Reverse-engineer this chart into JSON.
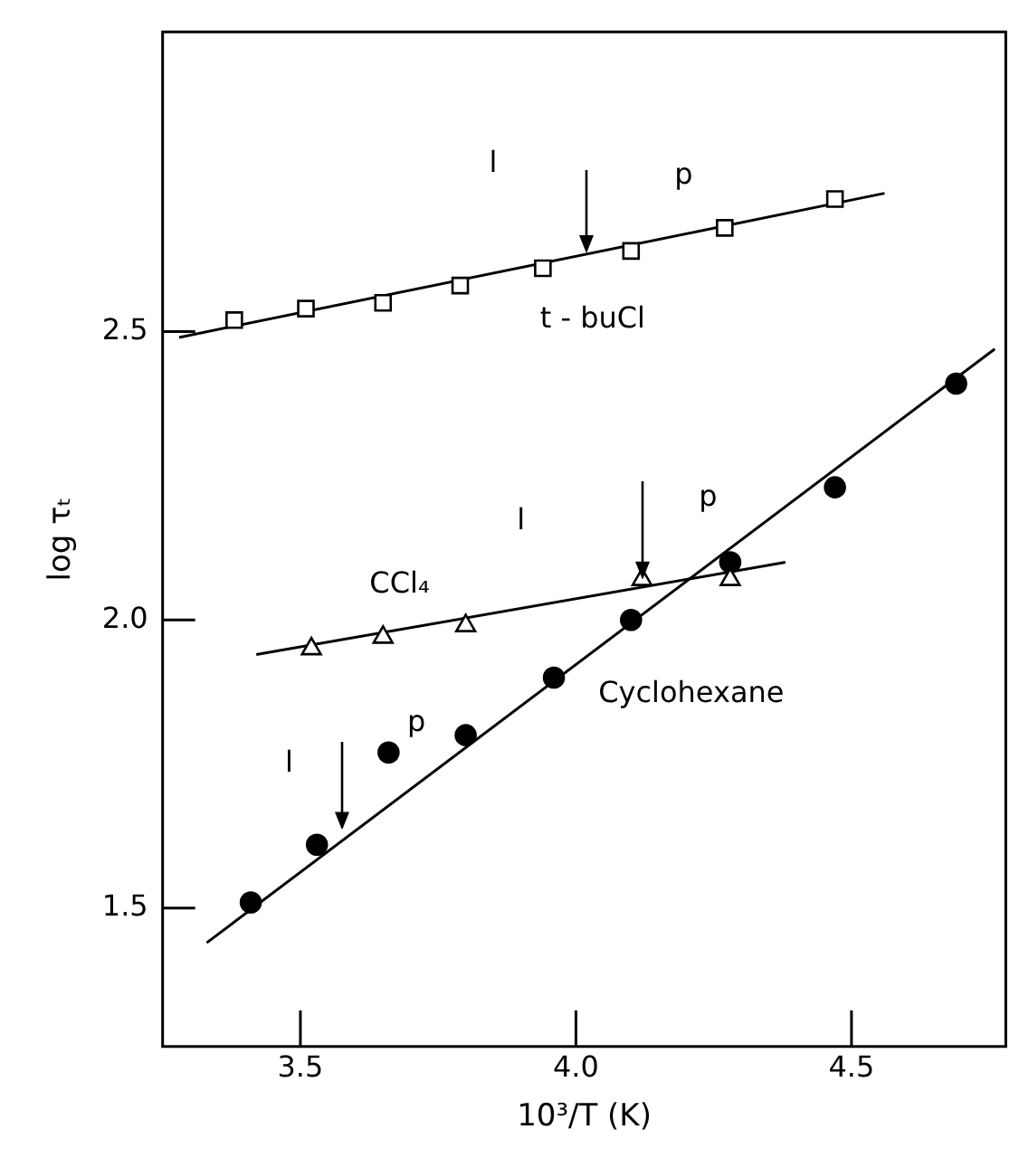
{
  "chart_data": {
    "type": "scatter",
    "xlabel": "10³/T (K)",
    "ylabel": "log τₜ",
    "xlim": [
      3.25,
      4.78
    ],
    "ylim": [
      1.26,
      3.02
    ],
    "xticks": [
      3.5,
      {
        "value": 4,
        "label": "4.0"
      },
      4.5
    ],
    "yticks": [
      1.5,
      {
        "value": 2,
        "label": "2.0"
      },
      2.5
    ],
    "series": [
      {
        "name": "t - buCl",
        "marker": "square",
        "color": "#000000",
        "x": [
          3.38,
          3.51,
          3.65,
          3.79,
          3.94,
          4.1,
          4.27,
          4.47
        ],
        "values": [
          2.52,
          2.54,
          2.55,
          2.58,
          2.61,
          2.64,
          2.68,
          2.73
        ]
      },
      {
        "type": "line",
        "marker": "none",
        "color": "#000000",
        "x": [
          3.28,
          4.56
        ],
        "values": [
          2.49,
          2.74
        ]
      },
      {
        "name": "CCl₄",
        "marker": "triangle",
        "color": "#000000",
        "x": [
          3.52,
          3.65,
          3.8,
          4.12,
          4.28
        ],
        "values": [
          1.95,
          1.97,
          1.99,
          2.07,
          2.07
        ]
      },
      {
        "type": "line",
        "marker": "none",
        "color": "#000000",
        "x": [
          3.42,
          4.38
        ],
        "values": [
          1.94,
          2.1
        ]
      },
      {
        "name": "Cyclohexane",
        "marker": "circle",
        "color": "#000000",
        "x": [
          3.41,
          3.53,
          3.66,
          3.8,
          3.96,
          4.1,
          4.28,
          4.47,
          4.69
        ],
        "values": [
          1.51,
          1.61,
          1.77,
          1.8,
          1.9,
          2.0,
          2.1,
          2.23,
          2.41
        ]
      },
      {
        "type": "line",
        "marker": "none",
        "color": "#000000",
        "x": [
          3.33,
          4.76
        ],
        "values": [
          1.44,
          2.47
        ]
      }
    ],
    "annotations": [
      "l",
      "p",
      "l",
      "p",
      "l",
      "p"
    ]
  }
}
